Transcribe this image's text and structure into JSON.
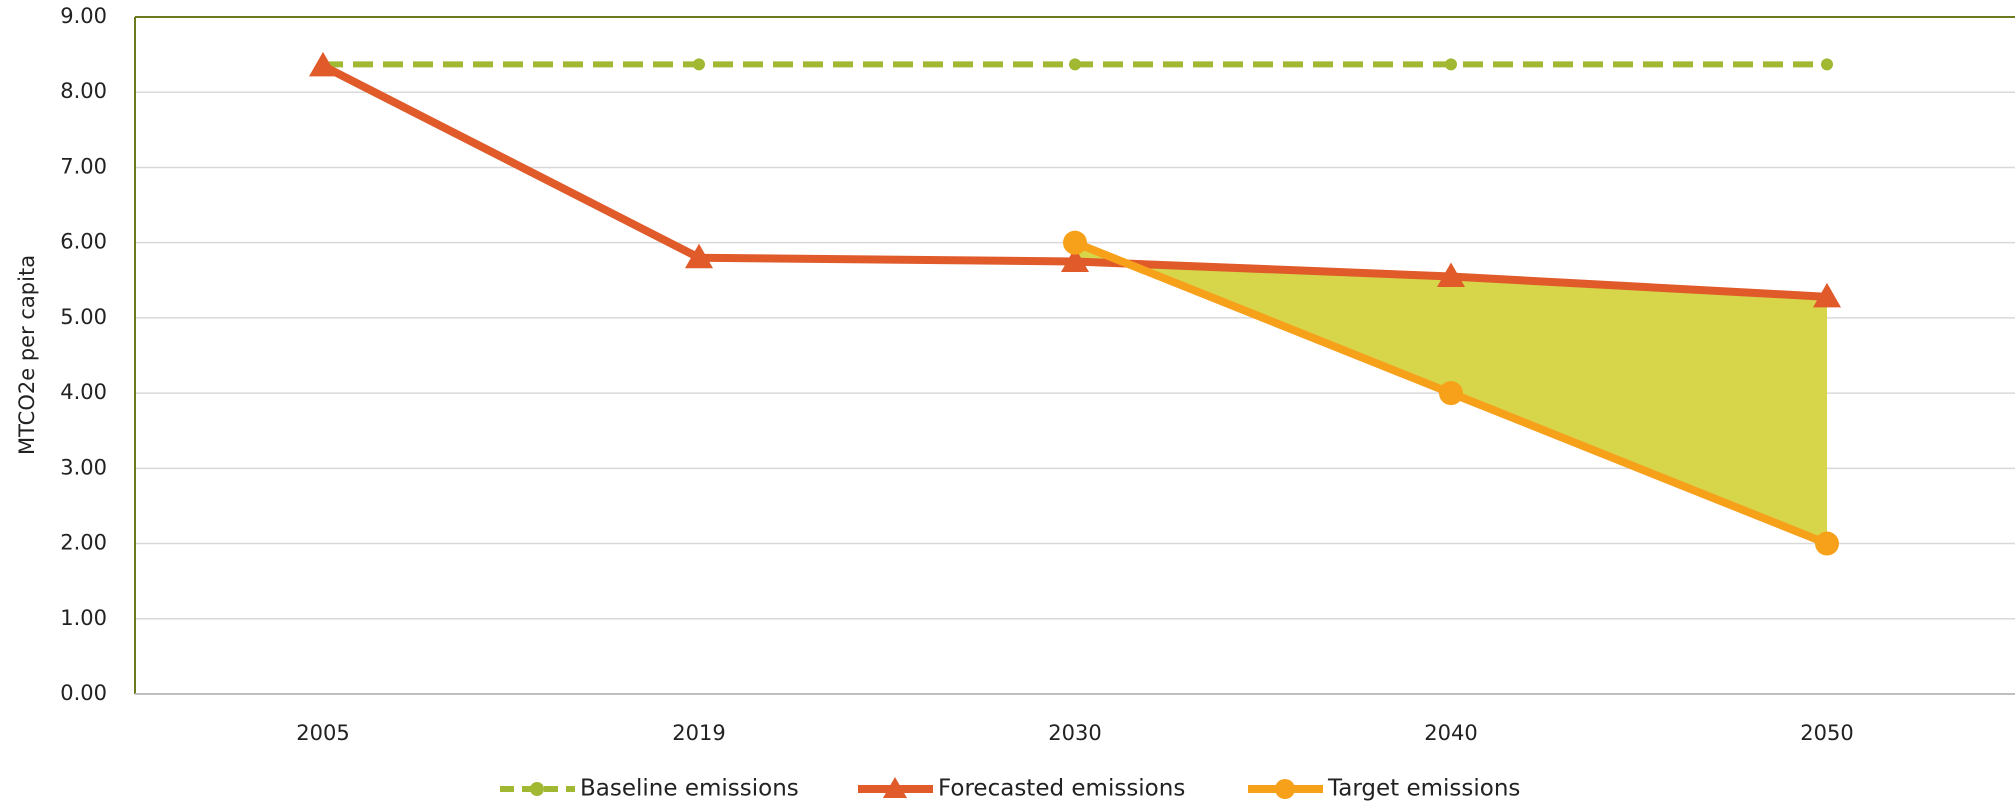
{
  "chart_data": {
    "type": "line",
    "y_label": "MTCO2e per capita",
    "categories": [
      "2005",
      "2019",
      "2030",
      "2040",
      "2050"
    ],
    "series": [
      {
        "name": "Baseline emissions",
        "color": "#a0b832",
        "dashed": true,
        "marker": "circle",
        "values": [
          8.37,
          8.37,
          8.37,
          8.37,
          8.37
        ]
      },
      {
        "name": "Forecasted emissions",
        "color": "#e05a2a",
        "marker": "triangle",
        "values": [
          8.35,
          5.8,
          5.75,
          5.55,
          5.28
        ]
      },
      {
        "name": "Target emissions",
        "color": "#f7a11a",
        "marker": "circle",
        "values": [
          null,
          null,
          6.0,
          4.0,
          2.0
        ]
      }
    ],
    "fill_between": {
      "color": "#d7d54a",
      "series": [
        1,
        2
      ]
    },
    "ylim": [
      0,
      9
    ],
    "yticks": [
      {
        "value": 0,
        "label": "0.00"
      },
      {
        "value": 1,
        "label": "1.00"
      },
      {
        "value": 2,
        "label": "2.00"
      },
      {
        "value": 3,
        "label": "3.00"
      },
      {
        "value": 4,
        "label": "4.00"
      },
      {
        "value": 5,
        "label": "5.00"
      },
      {
        "value": 6,
        "label": "6.00"
      },
      {
        "value": 7,
        "label": "7.00"
      },
      {
        "value": 8,
        "label": "8.00"
      },
      {
        "value": 9,
        "label": "9.00"
      }
    ],
    "grid": true,
    "legend": "bottom"
  }
}
